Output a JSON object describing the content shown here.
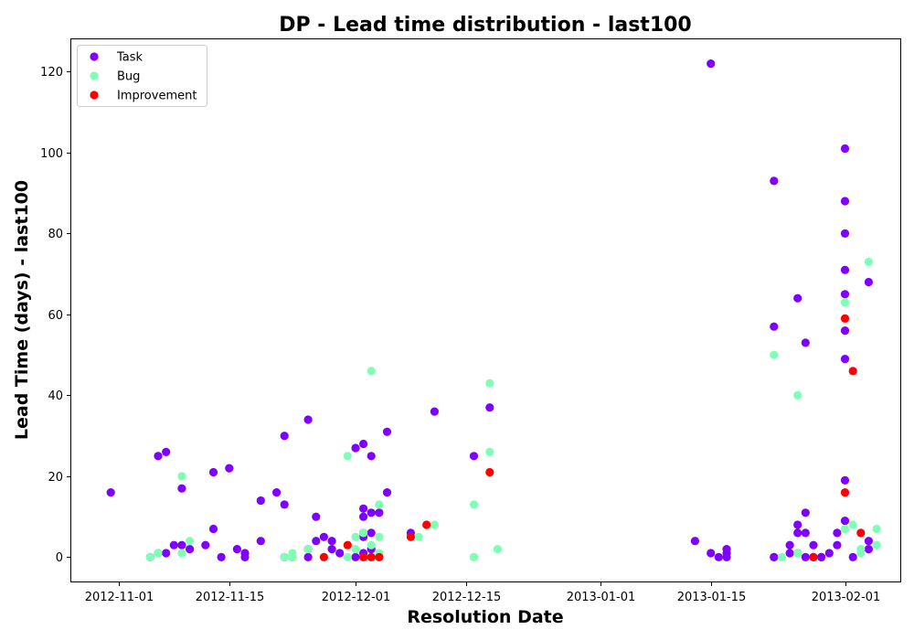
{
  "chart_data": {
    "type": "scatter",
    "title": "DP - Lead time distribution - last100",
    "xlabel": "Resolution Date",
    "ylabel": "Lead Time (days) - last100",
    "xlim": [
      "2012-10-26",
      "2013-02-08"
    ],
    "ylim": [
      -6,
      128
    ],
    "x_ticks": [
      "2012-11-01",
      "2012-11-15",
      "2012-12-01",
      "2012-12-15",
      "2013-01-01",
      "2013-01-15",
      "2013-02-01"
    ],
    "y_ticks": [
      0,
      20,
      40,
      60,
      80,
      100,
      120
    ],
    "grid": false,
    "legend_position": "upper-left",
    "series": [
      {
        "name": "Task",
        "color": "#8000ff",
        "points": [
          [
            "2012-10-31",
            16
          ],
          [
            "2012-11-05",
            0
          ],
          [
            "2012-11-06",
            1
          ],
          [
            "2012-11-06",
            25
          ],
          [
            "2012-11-07",
            26
          ],
          [
            "2012-11-07",
            1
          ],
          [
            "2012-11-08",
            3
          ],
          [
            "2012-11-09",
            3
          ],
          [
            "2012-11-09",
            17
          ],
          [
            "2012-11-10",
            2
          ],
          [
            "2012-11-12",
            3
          ],
          [
            "2012-11-13",
            7
          ],
          [
            "2012-11-13",
            21
          ],
          [
            "2012-11-14",
            0
          ],
          [
            "2012-11-15",
            22
          ],
          [
            "2012-11-16",
            2
          ],
          [
            "2012-11-17",
            0
          ],
          [
            "2012-11-17",
            1
          ],
          [
            "2012-11-19",
            14
          ],
          [
            "2012-11-19",
            4
          ],
          [
            "2012-11-21",
            16
          ],
          [
            "2012-11-22",
            30
          ],
          [
            "2012-11-22",
            13
          ],
          [
            "2012-11-22",
            0
          ],
          [
            "2012-11-23",
            0
          ],
          [
            "2012-11-25",
            34
          ],
          [
            "2012-11-25",
            0
          ],
          [
            "2012-11-25",
            2
          ],
          [
            "2012-11-26",
            10
          ],
          [
            "2012-11-26",
            4
          ],
          [
            "2012-11-27",
            5
          ],
          [
            "2012-11-28",
            4
          ],
          [
            "2012-11-28",
            2
          ],
          [
            "2012-11-29",
            1
          ],
          [
            "2012-12-01",
            27
          ],
          [
            "2012-12-01",
            0
          ],
          [
            "2012-12-02",
            28
          ],
          [
            "2012-12-02",
            12
          ],
          [
            "2012-12-02",
            10
          ],
          [
            "2012-12-02",
            6
          ],
          [
            "2012-12-02",
            5
          ],
          [
            "2012-12-02",
            1
          ],
          [
            "2012-12-03",
            25
          ],
          [
            "2012-12-03",
            11
          ],
          [
            "2012-12-03",
            6
          ],
          [
            "2012-12-03",
            2
          ],
          [
            "2012-12-04",
            11
          ],
          [
            "2012-12-05",
            31
          ],
          [
            "2012-12-05",
            16
          ],
          [
            "2012-12-08",
            6
          ],
          [
            "2012-12-11",
            36
          ],
          [
            "2012-12-16",
            25
          ],
          [
            "2012-12-18",
            37
          ],
          [
            "2013-01-13",
            4
          ],
          [
            "2013-01-15",
            122
          ],
          [
            "2013-01-15",
            1
          ],
          [
            "2013-01-16",
            0
          ],
          [
            "2013-01-17",
            2
          ],
          [
            "2013-01-17",
            1
          ],
          [
            "2013-01-17",
            0
          ],
          [
            "2013-01-23",
            0
          ],
          [
            "2013-01-23",
            0
          ],
          [
            "2013-01-23",
            93
          ],
          [
            "2013-01-23",
            57
          ],
          [
            "2013-01-25",
            3
          ],
          [
            "2013-01-25",
            1
          ],
          [
            "2013-01-26",
            64
          ],
          [
            "2013-01-26",
            8
          ],
          [
            "2013-01-26",
            6
          ],
          [
            "2013-01-26",
            1
          ],
          [
            "2013-01-27",
            53
          ],
          [
            "2013-01-27",
            11
          ],
          [
            "2013-01-27",
            6
          ],
          [
            "2013-01-27",
            0
          ],
          [
            "2013-01-28",
            3
          ],
          [
            "2013-01-28",
            0
          ],
          [
            "2013-01-29",
            0
          ],
          [
            "2013-01-29",
            0
          ],
          [
            "2013-01-30",
            1
          ],
          [
            "2013-01-31",
            3
          ],
          [
            "2013-01-31",
            6
          ],
          [
            "2013-02-01",
            101
          ],
          [
            "2013-02-01",
            88
          ],
          [
            "2013-02-01",
            80
          ],
          [
            "2013-02-01",
            71
          ],
          [
            "2013-02-01",
            65
          ],
          [
            "2013-02-01",
            56
          ],
          [
            "2013-02-01",
            49
          ],
          [
            "2013-02-01",
            19
          ],
          [
            "2013-02-01",
            9
          ],
          [
            "2013-02-02",
            0
          ],
          [
            "2013-02-04",
            68
          ],
          [
            "2013-02-04",
            4
          ],
          [
            "2013-02-04",
            2
          ]
        ]
      },
      {
        "name": "Bug",
        "color": "#80ffb4",
        "points": [
          [
            "2012-11-05",
            0
          ],
          [
            "2012-11-06",
            1
          ],
          [
            "2012-11-09",
            20
          ],
          [
            "2012-11-09",
            1
          ],
          [
            "2012-11-10",
            4
          ],
          [
            "2012-11-22",
            0
          ],
          [
            "2012-11-23",
            0
          ],
          [
            "2012-11-23",
            1
          ],
          [
            "2012-11-25",
            2
          ],
          [
            "2012-11-30",
            25
          ],
          [
            "2012-11-30",
            0
          ],
          [
            "2012-12-01",
            5
          ],
          [
            "2012-12-01",
            2
          ],
          [
            "2012-12-02",
            6
          ],
          [
            "2012-12-03",
            46
          ],
          [
            "2012-12-03",
            3
          ],
          [
            "2012-12-04",
            13
          ],
          [
            "2012-12-04",
            5
          ],
          [
            "2012-12-04",
            1
          ],
          [
            "2012-12-09",
            5
          ],
          [
            "2012-12-11",
            8
          ],
          [
            "2012-12-16",
            13
          ],
          [
            "2012-12-16",
            0
          ],
          [
            "2012-12-16",
            0
          ],
          [
            "2012-12-18",
            43
          ],
          [
            "2012-12-18",
            26
          ],
          [
            "2012-12-19",
            2
          ],
          [
            "2013-01-23",
            50
          ],
          [
            "2013-01-24",
            0
          ],
          [
            "2013-01-26",
            40
          ],
          [
            "2013-01-26",
            1
          ],
          [
            "2013-02-01",
            63
          ],
          [
            "2013-02-01",
            7
          ],
          [
            "2013-02-02",
            8
          ],
          [
            "2013-02-03",
            2
          ],
          [
            "2013-02-03",
            1
          ],
          [
            "2013-02-04",
            73
          ],
          [
            "2013-02-05",
            7
          ],
          [
            "2013-02-05",
            3
          ],
          [
            "2013-02-05",
            3
          ]
        ]
      },
      {
        "name": "Improvement",
        "color": "#ff0000",
        "points": [
          [
            "2012-11-27",
            0
          ],
          [
            "2012-11-30",
            3
          ],
          [
            "2012-12-02",
            0
          ],
          [
            "2012-12-03",
            0
          ],
          [
            "2012-12-04",
            0
          ],
          [
            "2012-12-08",
            5
          ],
          [
            "2012-12-10",
            8
          ],
          [
            "2012-12-18",
            21
          ],
          [
            "2013-01-28",
            0
          ],
          [
            "2013-02-01",
            59
          ],
          [
            "2013-02-01",
            16
          ],
          [
            "2013-02-02",
            46
          ],
          [
            "2013-02-03",
            6
          ]
        ]
      }
    ]
  }
}
